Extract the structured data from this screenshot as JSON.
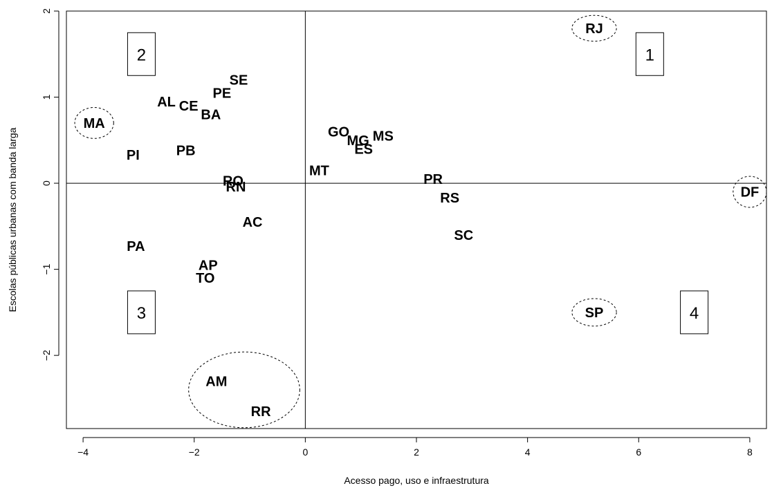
{
  "chart_data": {
    "type": "scatter",
    "title": "",
    "xlabel": "Acesso pago, uso e infraestrutura",
    "ylabel": "Escolas públicas urbanas com banda larga",
    "xlim": [
      -4.3,
      8.3
    ],
    "ylim": [
      -2.85,
      2.0
    ],
    "x_ticks": [
      -4,
      -2,
      0,
      2,
      4,
      6,
      8
    ],
    "y_ticks": [
      -2,
      -1,
      0,
      1,
      2
    ],
    "x_tick_labels": [
      "−4",
      "−2",
      "0",
      "2",
      "4",
      "6",
      "8"
    ],
    "y_tick_labels": [
      "−2",
      "−1",
      "0",
      "1",
      "2"
    ],
    "grid": false,
    "reference_lines": {
      "x": 0,
      "y": 0
    },
    "points": [
      {
        "label": "RJ",
        "x": 5.2,
        "y": 1.8
      },
      {
        "label": "MA",
        "x": -3.8,
        "y": 0.7
      },
      {
        "label": "SE",
        "x": -1.2,
        "y": 1.2
      },
      {
        "label": "PE",
        "x": -1.5,
        "y": 1.05
      },
      {
        "label": "AL",
        "x": -2.5,
        "y": 0.95
      },
      {
        "label": "CE",
        "x": -2.1,
        "y": 0.9
      },
      {
        "label": "BA",
        "x": -1.7,
        "y": 0.8
      },
      {
        "label": "PI",
        "x": -3.1,
        "y": 0.33
      },
      {
        "label": "PB",
        "x": -2.15,
        "y": 0.38
      },
      {
        "label": "GO",
        "x": 0.6,
        "y": 0.6
      },
      {
        "label": "MG",
        "x": 0.95,
        "y": 0.5
      },
      {
        "label": "MS",
        "x": 1.4,
        "y": 0.55
      },
      {
        "label": "ES",
        "x": 1.05,
        "y": 0.4
      },
      {
        "label": "MT",
        "x": 0.25,
        "y": 0.15
      },
      {
        "label": "RO",
        "x": -1.3,
        "y": 0.03
      },
      {
        "label": "RN",
        "x": -1.25,
        "y": -0.04
      },
      {
        "label": "PR",
        "x": 2.3,
        "y": 0.05
      },
      {
        "label": "RS",
        "x": 2.6,
        "y": -0.17
      },
      {
        "label": "DF",
        "x": 8.0,
        "y": -0.1
      },
      {
        "label": "AC",
        "x": -0.95,
        "y": -0.45
      },
      {
        "label": "SC",
        "x": 2.85,
        "y": -0.6
      },
      {
        "label": "PA",
        "x": -3.05,
        "y": -0.73
      },
      {
        "label": "AP",
        "x": -1.75,
        "y": -0.95
      },
      {
        "label": "TO",
        "x": -1.8,
        "y": -1.1
      },
      {
        "label": "SP",
        "x": 5.2,
        "y": -1.5
      },
      {
        "label": "AM",
        "x": -1.6,
        "y": -2.3
      },
      {
        "label": "RR",
        "x": -0.8,
        "y": -2.65
      }
    ],
    "ellipses": [
      {
        "cx": 5.2,
        "cy": 1.8,
        "rx": 0.4,
        "ry": 0.15
      },
      {
        "cx": -3.8,
        "cy": 0.7,
        "rx": 0.35,
        "ry": 0.18
      },
      {
        "cx": 8.0,
        "cy": -0.1,
        "rx": 0.3,
        "ry": 0.18
      },
      {
        "cx": 5.2,
        "cy": -1.5,
        "rx": 0.4,
        "ry": 0.16
      },
      {
        "cx": -1.1,
        "cy": -2.4,
        "rx": 1.0,
        "ry": 0.44
      }
    ],
    "quadrant_labels": [
      {
        "text": "1",
        "x": 6.2,
        "y": 1.5
      },
      {
        "text": "2",
        "x": -2.95,
        "y": 1.5
      },
      {
        "text": "3",
        "x": -2.95,
        "y": -1.5
      },
      {
        "text": "4",
        "x": 7.0,
        "y": -1.5
      }
    ]
  }
}
